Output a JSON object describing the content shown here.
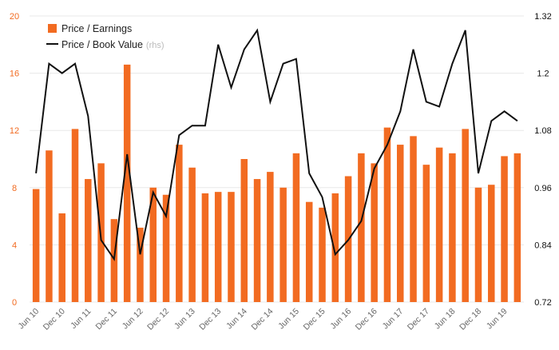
{
  "chart_data": {
    "type": "bar",
    "colors": {
      "bar": "#f26b21",
      "line": "#111111",
      "left_axis_text": "#f26b21",
      "right_axis_text": "#111111",
      "rhs_text": "#bbbbbb"
    },
    "legend": {
      "position": "top-left",
      "bar_label": "Price / Earnings",
      "line_label": "Price / Book Value",
      "line_suffix": "(rhs)"
    },
    "left_axis": {
      "min": 0,
      "max": 20,
      "ticks": [
        "0",
        "4",
        "8",
        "12",
        "16",
        "20"
      ]
    },
    "right_axis": {
      "min": 0.72,
      "max": 1.32,
      "ticks": [
        "0.72",
        "0.84",
        "0.96",
        "1.08",
        "1.2",
        "1.32"
      ]
    },
    "x_ticks": [
      "Jun 10",
      "Dec 10",
      "Jun 11",
      "Dec 11",
      "Jun 12",
      "Dec 12",
      "Jun 13",
      "Dec 13",
      "Jun 14",
      "Dec 14",
      "Jun 15",
      "Dec 15",
      "Jun 16",
      "Dec 16",
      "Jun 17",
      "Dec 17",
      "Jun 18",
      "Dec 18",
      "Jun 19"
    ],
    "series": [
      {
        "name": "Price / Earnings",
        "kind": "bar",
        "values": [
          7.9,
          10.6,
          6.2,
          12.1,
          8.6,
          9.7,
          5.8,
          16.6,
          5.2,
          8.0,
          7.5,
          11.0,
          9.4,
          7.6,
          7.7,
          7.7,
          10.0,
          8.6,
          9.1,
          8.0,
          10.4,
          7.0,
          6.6,
          7.6,
          8.8,
          10.4,
          9.7,
          12.2,
          11.0,
          11.6,
          9.6,
          10.8,
          10.4,
          12.1,
          8.0,
          8.2,
          10.2,
          10.4
        ]
      },
      {
        "name": "Price / Book Value",
        "kind": "line",
        "values": [
          0.99,
          1.22,
          1.2,
          1.22,
          1.11,
          0.85,
          0.81,
          1.03,
          0.82,
          0.95,
          0.9,
          1.07,
          1.09,
          1.09,
          1.26,
          1.17,
          1.25,
          1.29,
          1.14,
          1.22,
          1.23,
          0.99,
          0.94,
          0.82,
          0.85,
          0.89,
          1.0,
          1.05,
          1.12,
          1.25,
          1.14,
          1.13,
          1.22,
          1.29,
          0.99,
          1.1,
          1.12,
          1.1
        ]
      }
    ]
  }
}
